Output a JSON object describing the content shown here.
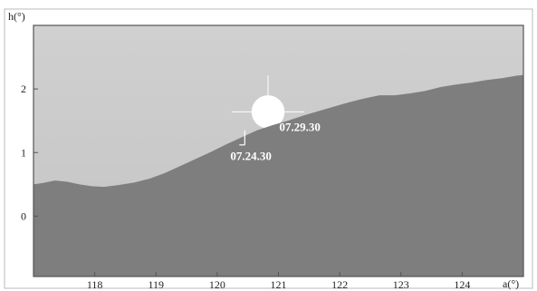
{
  "chart_data": {
    "type": "area",
    "xlabel": "a(°)",
    "ylabel": "h(°)",
    "xlim": [
      117.0,
      125.0
    ],
    "ylim": [
      -0.95,
      3.0
    ],
    "x_ticks": [
      118,
      119,
      120,
      121,
      122,
      123,
      124
    ],
    "y_ticks": [
      0,
      1,
      2
    ],
    "grid": false,
    "colors": {
      "sky": "#c4c4c4",
      "sky_top": "#d0d0d0",
      "terrain": "#7e7e7e",
      "frame": "#555555",
      "sun": "#ffffff",
      "annotation": "#ffffff"
    },
    "horizon_profile": {
      "x": [
        117.0,
        117.15,
        117.35,
        117.55,
        117.75,
        117.95,
        118.15,
        118.4,
        118.65,
        118.9,
        119.15,
        119.4,
        119.65,
        119.9,
        120.15,
        120.4,
        120.65,
        120.9,
        121.15,
        121.4,
        121.65,
        121.9,
        122.15,
        122.4,
        122.65,
        122.9,
        123.15,
        123.4,
        123.65,
        123.9,
        124.15,
        124.4,
        124.65,
        124.9,
        125.0
      ],
      "y": [
        0.5,
        0.52,
        0.56,
        0.54,
        0.5,
        0.47,
        0.46,
        0.49,
        0.53,
        0.59,
        0.68,
        0.79,
        0.9,
        1.01,
        1.13,
        1.24,
        1.35,
        1.43,
        1.5,
        1.58,
        1.65,
        1.72,
        1.79,
        1.85,
        1.9,
        1.9,
        1.93,
        1.97,
        2.03,
        2.07,
        2.1,
        2.14,
        2.17,
        2.21,
        2.22
      ]
    },
    "sun": {
      "x": 120.83,
      "y": 1.64,
      "radius_deg": 0.27
    },
    "annotations": [
      {
        "label": "07.29.30",
        "x": 121.35,
        "y": 1.34
      },
      {
        "label": "07.24.30",
        "x": 120.55,
        "y": 0.88
      }
    ],
    "marker": {
      "x": 120.45,
      "y_bottom": 1.12,
      "y_top": 1.35
    }
  }
}
